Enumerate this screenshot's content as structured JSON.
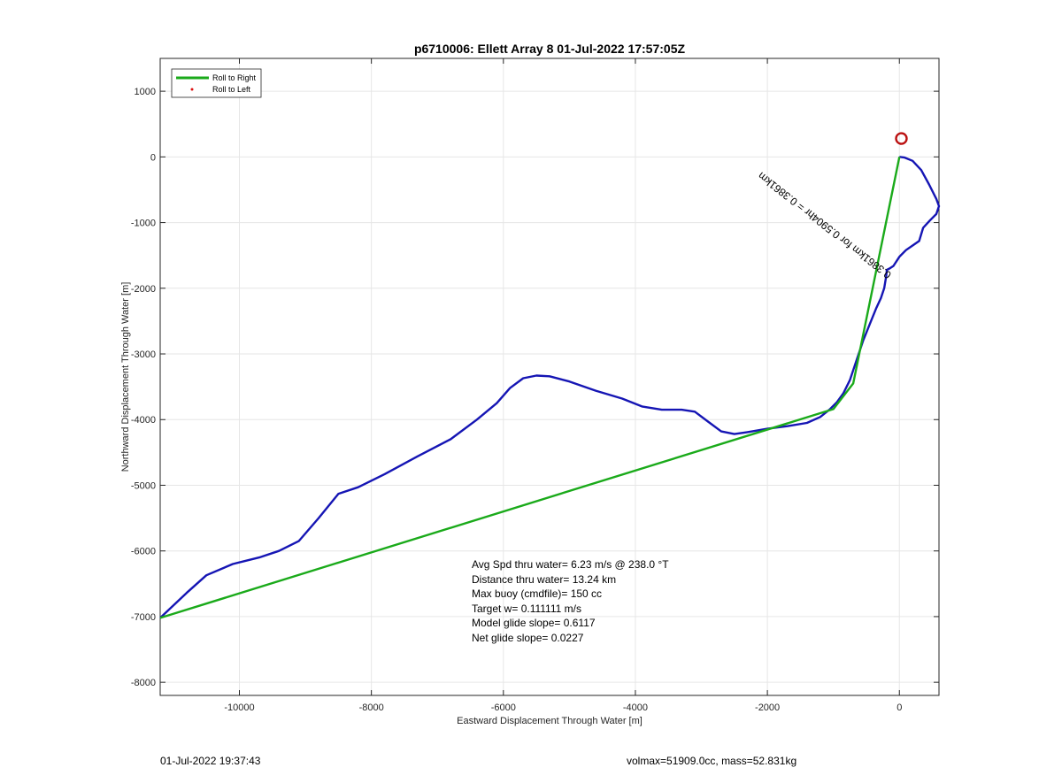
{
  "chart_data": {
    "type": "line",
    "title": "p6710006: Ellett Array 8 01-Jul-2022 17:57:05Z",
    "xlabel": "Eastward Displacement Through Water [m]",
    "ylabel": "Northward Displacement Through Water [m]",
    "xlim": [
      -11200,
      600
    ],
    "ylim": [
      -8200,
      1500
    ],
    "xticks": [
      -10000,
      -8000,
      -6000,
      -4000,
      -2000,
      0
    ],
    "yticks": [
      1000,
      0,
      -1000,
      -2000,
      -3000,
      -4000,
      -5000,
      -6000,
      -7000,
      -8000
    ],
    "xtick_labels": [
      "-10000",
      "-8000",
      "-6000",
      "-4000",
      "-2000",
      "0"
    ],
    "ytick_labels": [
      "1000",
      "0",
      "-1000",
      "-2000",
      "-3000",
      "-4000",
      "-5000",
      "-6000",
      "-7000",
      "-8000"
    ],
    "grid": true,
    "legend_position": "top-left",
    "legend": [
      {
        "label": "Roll to Right",
        "color": "#1aaa1a",
        "style": "line"
      },
      {
        "label": "Roll to Left",
        "color": "#dd1111",
        "style": "dot"
      }
    ],
    "series": [
      {
        "name": "",
        "color": "#1515b4",
        "x": [
          0,
          80,
          200,
          330,
          450,
          560,
          600,
          560,
          460,
          360,
          300,
          200,
          100,
          0,
          -90,
          -150,
          -190,
          -200,
          -230,
          -280,
          -350,
          -450,
          -550,
          -650,
          -750,
          -850,
          -950,
          -1050,
          -1200,
          -1400,
          -1700,
          -2000,
          -2300,
          -2500,
          -2700,
          -2900,
          -3100,
          -3300,
          -3600,
          -3900,
          -4200,
          -4600,
          -5000,
          -5300,
          -5500,
          -5700,
          -5900,
          -6100,
          -6400,
          -6800,
          -7300,
          -7800,
          -8200,
          -8500,
          -8800,
          -9100,
          -9400,
          -9700,
          -10100,
          -10500,
          -10800,
          -11200
        ],
        "y": [
          0,
          -10,
          -60,
          -200,
          -420,
          -640,
          -750,
          -870,
          -970,
          -1080,
          -1280,
          -1350,
          -1420,
          -1520,
          -1660,
          -1700,
          -1720,
          -1820,
          -2000,
          -2150,
          -2300,
          -2550,
          -2800,
          -3100,
          -3400,
          -3600,
          -3740,
          -3840,
          -3960,
          -4050,
          -4100,
          -4140,
          -4190,
          -4220,
          -4180,
          -4030,
          -3880,
          -3850,
          -3850,
          -3800,
          -3680,
          -3560,
          -3420,
          -3340,
          -3330,
          -3370,
          -3520,
          -3750,
          -4000,
          -4300,
          -4560,
          -4830,
          -5030,
          -5130,
          -5500,
          -5850,
          -6000,
          -6100,
          -6200,
          -6370,
          -6640,
          -7020
        ]
      },
      {
        "name": "Roll to Right",
        "color": "#1aaa1a",
        "x": [
          0,
          -700,
          -1000,
          -11200
        ],
        "y": [
          0,
          -3450,
          -3840,
          -7020
        ]
      }
    ],
    "target_marker": {
      "x": 30,
      "y": 280,
      "color": "#bb1111"
    },
    "rotated_annotation": {
      "text": "0.3861km for 0.5904hr = 0.3861km",
      "x": -1100,
      "y": -1000,
      "angle_deg": 38
    },
    "stats": [
      "Avg Spd thru water=  6.23 m/s @ 238.0 °T",
      "Distance thru water= 13.24 km",
      "Max buoy (cmdfile)= 150 cc",
      "Target w= 0.111111 m/s",
      "Model glide slope= 0.6117",
      "Net glide slope= 0.0227"
    ]
  },
  "footer": {
    "left": "01-Jul-2022 19:37:43",
    "right": "volmax=51909.0cc, mass=52.831kg"
  }
}
